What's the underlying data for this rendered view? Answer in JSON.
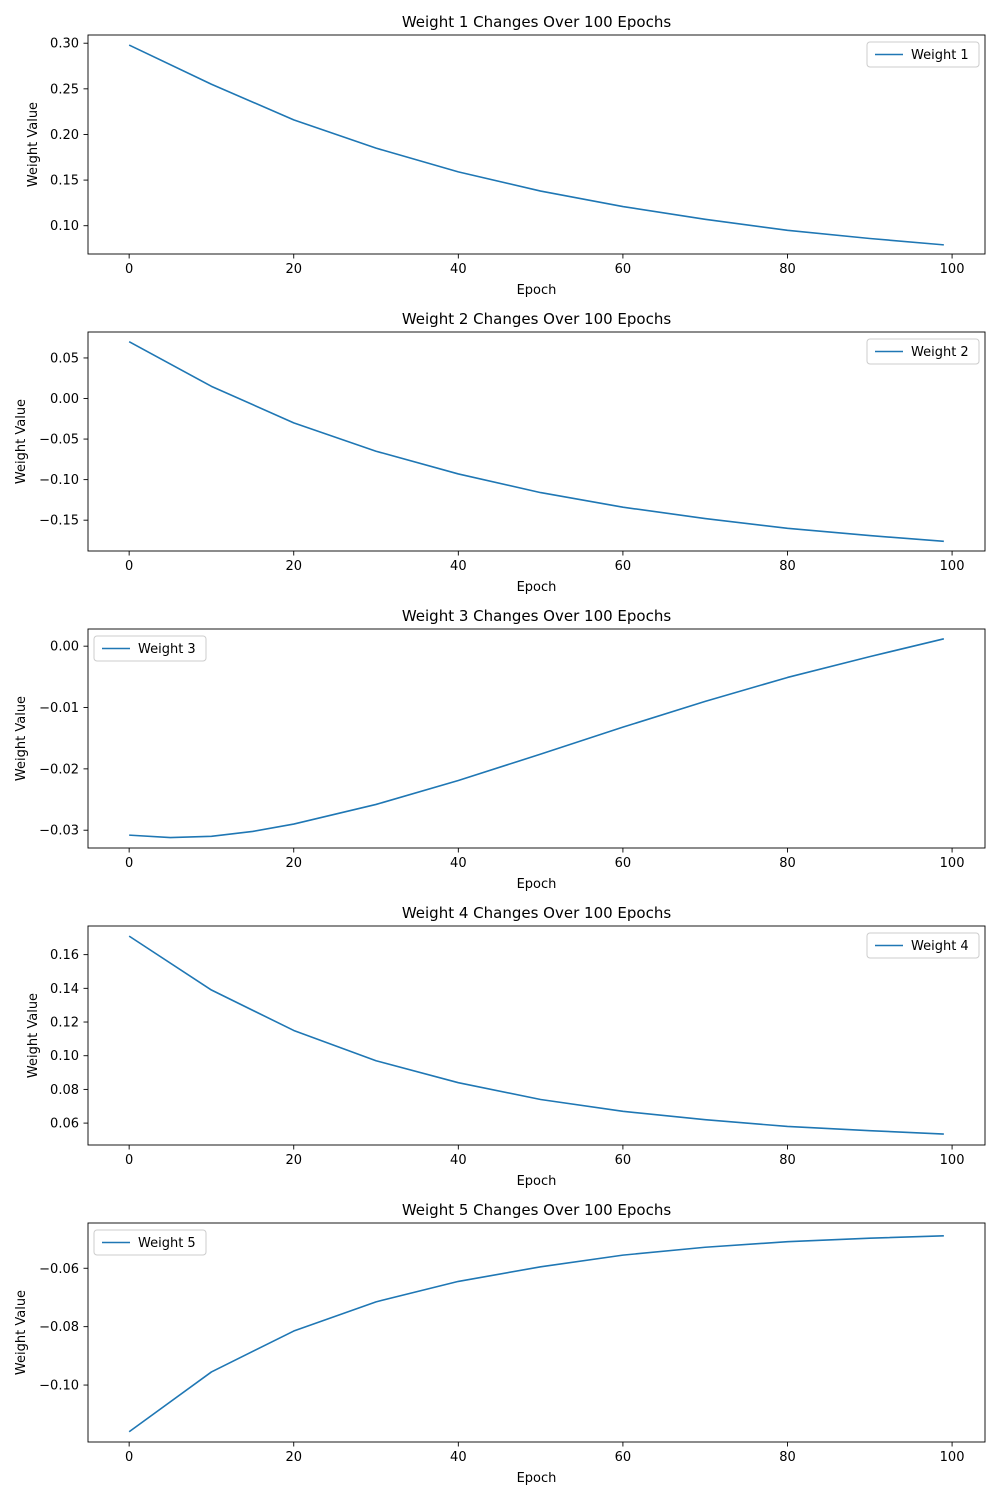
{
  "chart_data": [
    {
      "type": "line",
      "title": "Weight 1 Changes Over 100 Epochs",
      "xlabel": "Epoch",
      "ylabel": "Weight Value",
      "xlim": [
        -5,
        104
      ],
      "ylim": [
        0.069,
        0.309
      ],
      "xticks": [
        0,
        20,
        40,
        60,
        80,
        100
      ],
      "xtick_labels": [
        "0",
        "20",
        "40",
        "60",
        "80",
        "100"
      ],
      "yticks": [
        0.1,
        0.15,
        0.2,
        0.25,
        0.3
      ],
      "ytick_labels": [
        "0.10",
        "0.15",
        "0.20",
        "0.25",
        "0.30"
      ],
      "legend_position": "top-right",
      "grid": false,
      "series": [
        {
          "name": "Weight 1",
          "color": "#1f77b4",
          "x": [
            0,
            10,
            20,
            30,
            40,
            50,
            60,
            70,
            80,
            90,
            99
          ],
          "y": [
            0.298,
            0.255,
            0.216,
            0.185,
            0.159,
            0.138,
            0.121,
            0.107,
            0.095,
            0.086,
            0.079
          ]
        }
      ]
    },
    {
      "type": "line",
      "title": "Weight 2 Changes Over 100 Epochs",
      "xlabel": "Epoch",
      "ylabel": "Weight Value",
      "xlim": [
        -5,
        104
      ],
      "ylim": [
        -0.188,
        0.082
      ],
      "xticks": [
        0,
        20,
        40,
        60,
        80,
        100
      ],
      "xtick_labels": [
        "0",
        "20",
        "40",
        "60",
        "80",
        "100"
      ],
      "yticks": [
        -0.15,
        -0.1,
        -0.05,
        0.0,
        0.05
      ],
      "ytick_labels": [
        "−0.15",
        "−0.10",
        "−0.05",
        "0.00",
        "0.05"
      ],
      "legend_position": "top-right",
      "grid": false,
      "series": [
        {
          "name": "Weight 2",
          "color": "#1f77b4",
          "x": [
            0,
            10,
            20,
            30,
            40,
            50,
            60,
            70,
            80,
            90,
            99
          ],
          "y": [
            0.07,
            0.015,
            -0.03,
            -0.065,
            -0.093,
            -0.116,
            -0.134,
            -0.148,
            -0.16,
            -0.169,
            -0.176
          ]
        }
      ]
    },
    {
      "type": "line",
      "title": "Weight 3 Changes Over 100 Epochs",
      "xlabel": "Epoch",
      "ylabel": "Weight Value",
      "xlim": [
        -5,
        104
      ],
      "ylim": [
        -0.0329,
        0.0028
      ],
      "xticks": [
        0,
        20,
        40,
        60,
        80,
        100
      ],
      "xtick_labels": [
        "0",
        "20",
        "40",
        "60",
        "80",
        "100"
      ],
      "yticks": [
        -0.03,
        -0.02,
        -0.01,
        0.0
      ],
      "ytick_labels": [
        "−0.03",
        "−0.02",
        "−0.01",
        "0.00"
      ],
      "legend_position": "top-left",
      "grid": false,
      "series": [
        {
          "name": "Weight 3",
          "color": "#1f77b4",
          "x": [
            0,
            5,
            10,
            15,
            20,
            30,
            40,
            50,
            60,
            70,
            80,
            90,
            99
          ],
          "y": [
            -0.0308,
            -0.0312,
            -0.031,
            -0.0302,
            -0.029,
            -0.0258,
            -0.0219,
            -0.0176,
            -0.0132,
            -0.009,
            -0.0051,
            -0.0017,
            0.0012
          ]
        }
      ]
    },
    {
      "type": "line",
      "title": "Weight 4 Changes Over 100 Epochs",
      "xlabel": "Epoch",
      "ylabel": "Weight Value",
      "xlim": [
        -5,
        104
      ],
      "ylim": [
        0.047,
        0.177
      ],
      "xticks": [
        0,
        20,
        40,
        60,
        80,
        100
      ],
      "xtick_labels": [
        "0",
        "20",
        "40",
        "60",
        "80",
        "100"
      ],
      "yticks": [
        0.06,
        0.08,
        0.1,
        0.12,
        0.14,
        0.16
      ],
      "ytick_labels": [
        "0.06",
        "0.08",
        "0.10",
        "0.12",
        "0.14",
        "0.16"
      ],
      "legend_position": "top-right",
      "grid": false,
      "series": [
        {
          "name": "Weight 4",
          "color": "#1f77b4",
          "x": [
            0,
            10,
            20,
            30,
            40,
            50,
            60,
            70,
            80,
            90,
            99
          ],
          "y": [
            0.171,
            0.139,
            0.115,
            0.097,
            0.084,
            0.074,
            0.067,
            0.062,
            0.058,
            0.0555,
            0.0535
          ]
        }
      ]
    },
    {
      "type": "line",
      "title": "Weight 5 Changes Over 100 Epochs",
      "xlabel": "Epoch",
      "ylabel": "Weight Value",
      "xlim": [
        -5,
        104
      ],
      "ylim": [
        -0.1195,
        -0.0445
      ],
      "xticks": [
        0,
        20,
        40,
        60,
        80,
        100
      ],
      "xtick_labels": [
        "0",
        "20",
        "40",
        "60",
        "80",
        "100"
      ],
      "yticks": [
        -0.1,
        -0.08,
        -0.06
      ],
      "ytick_labels": [
        "−0.10",
        "−0.08",
        "−0.06"
      ],
      "legend_position": "top-left",
      "grid": false,
      "series": [
        {
          "name": "Weight 5",
          "color": "#1f77b4",
          "x": [
            0,
            10,
            20,
            30,
            40,
            50,
            60,
            70,
            80,
            90,
            99
          ],
          "y": [
            -0.116,
            -0.0955,
            -0.0815,
            -0.0715,
            -0.0645,
            -0.0595,
            -0.0555,
            -0.0528,
            -0.0509,
            -0.0497,
            -0.0489
          ]
        }
      ]
    }
  ]
}
